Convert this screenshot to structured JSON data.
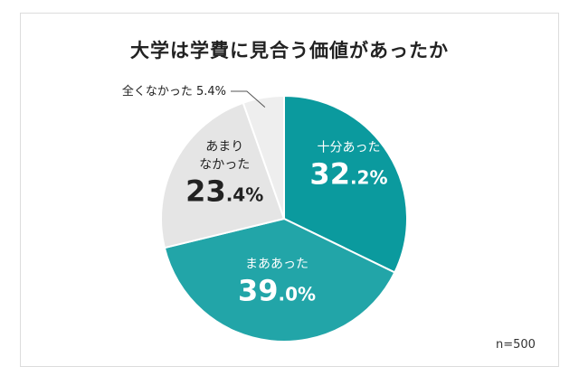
{
  "chart_data": {
    "type": "pie",
    "title": "大学は学費に見合う価値があったか",
    "note": "n=500",
    "slices": [
      {
        "label": "十分あった",
        "value": 32.2,
        "int": "32",
        "dec": ".2%",
        "color": "#0b9a9e",
        "text_color": "#ffffff"
      },
      {
        "label": "まああった",
        "value": 39.0,
        "int": "39",
        "dec": ".0%",
        "color": "#22a5a8",
        "text_color": "#ffffff"
      },
      {
        "label": "あまり\nなかった",
        "value": 23.4,
        "int": "23",
        "dec": ".4%",
        "color": "#e5e5e5",
        "text_color": "#222222"
      },
      {
        "label": "全くなかった",
        "value": 5.4,
        "pct_text": "5.4%",
        "color": "#eeeeee",
        "text_color": "#222222",
        "outside": true
      }
    ]
  }
}
